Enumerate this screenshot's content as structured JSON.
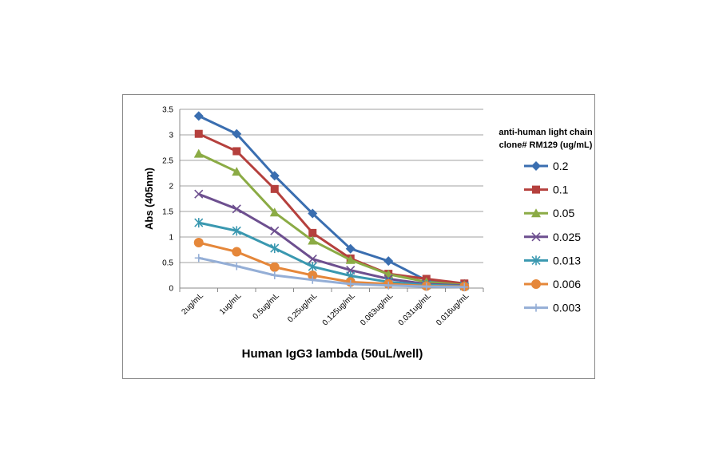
{
  "chart_data": {
    "type": "line",
    "title": "",
    "xlabel": "Human IgG3 lambda (50uL/well)",
    "ylabel": "Abs (405nm)",
    "ylim": [
      0,
      3.5
    ],
    "yticks": [
      "0",
      "0.5",
      "1",
      "1.5",
      "2",
      "2.5",
      "3",
      "3.5"
    ],
    "grid": true,
    "legend_title": [
      "anti-human light chain",
      "clone# RM129 (ug/mL)"
    ],
    "legend_placement": "right",
    "categories": [
      "2ug/mL",
      "1ug/mL",
      "0.5ug/mL",
      "0.25ug/mL",
      "0.125ug/mL",
      "0.063ug/mL",
      "0.031ug/mL",
      "0.016ug/mL"
    ],
    "series": [
      {
        "name": "0.2",
        "color": "#3a6eb0",
        "marker": "diamond",
        "values": [
          3.37,
          3.02,
          2.2,
          1.46,
          0.77,
          0.53,
          0.15,
          0.08
        ]
      },
      {
        "name": "0.1",
        "color": "#b5403d",
        "marker": "square",
        "values": [
          3.02,
          2.68,
          1.94,
          1.08,
          0.58,
          0.28,
          0.18,
          0.09
        ]
      },
      {
        "name": "0.05",
        "color": "#8bab45",
        "marker": "triangle",
        "values": [
          2.63,
          2.28,
          1.48,
          0.93,
          0.55,
          0.27,
          0.12,
          0.06
        ]
      },
      {
        "name": "0.025",
        "color": "#6d4f8f",
        "marker": "x",
        "values": [
          1.84,
          1.55,
          1.12,
          0.57,
          0.35,
          0.18,
          0.08,
          0.05
        ]
      },
      {
        "name": "0.013",
        "color": "#3a98b0",
        "marker": "star",
        "values": [
          1.28,
          1.12,
          0.78,
          0.42,
          0.24,
          0.12,
          0.06,
          0.04
        ]
      },
      {
        "name": "0.006",
        "color": "#e5873a",
        "marker": "circle",
        "values": [
          0.89,
          0.71,
          0.41,
          0.25,
          0.12,
          0.08,
          0.04,
          0.03
        ]
      },
      {
        "name": "0.003",
        "color": "#94aed6",
        "marker": "plus",
        "values": [
          0.59,
          0.43,
          0.25,
          0.16,
          0.08,
          0.05,
          0.03,
          0.02
        ]
      }
    ]
  }
}
